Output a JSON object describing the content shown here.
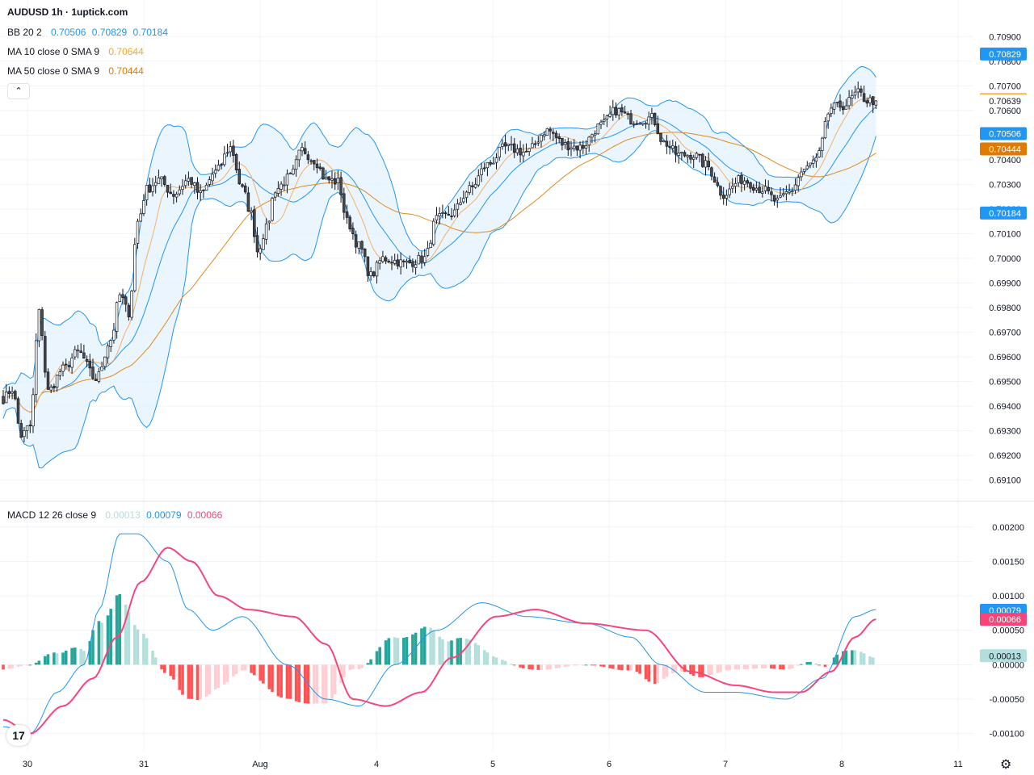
{
  "header": {
    "title": "AUDUSD 1h · 1uptick.com"
  },
  "legend": {
    "bb": {
      "label": "BB 20 2",
      "basis": "0.70506",
      "upper": "0.70829",
      "lower": "0.70184"
    },
    "ma10": {
      "label": "MA 10 close 0 SMA 9",
      "value": "0.70644"
    },
    "ma50": {
      "label": "MA 50 close 0 SMA 9",
      "value": "0.70444"
    },
    "macd": {
      "label": "MACD 12 26 close 9",
      "hist": "0.00013",
      "macd": "0.00079",
      "signal": "0.00066"
    }
  },
  "collapse_icon": "chevron-up-icon",
  "logo_text": "17",
  "settings_icon": "gear-icon",
  "colors": {
    "up": "#ffffff",
    "down": "#4a4a4a",
    "wick": "#131722",
    "bb_line": "#2196f3",
    "bb_fill": "#e3f2fd",
    "ma10": "#f5b064",
    "ma50": "#e08a1e",
    "macd": "#2196f3",
    "signal": "#f7457a",
    "hist_pos_strong": "#26a69a",
    "hist_pos_weak": "#b2dfdb",
    "hist_neg_strong": "#ff5252",
    "hist_neg_weak": "#ffcdd2"
  },
  "chart_data": {
    "type": "candlestick",
    "price_axis": {
      "range": [
        0.6905,
        0.7095
      ],
      "ticks": [
        "0.70900",
        "0.70800",
        "0.70700",
        "0.70600",
        "0.70500",
        "0.70400",
        "0.70300",
        "0.70200",
        "0.70100",
        "0.70000",
        "0.69900",
        "0.69800",
        "0.69700",
        "0.69600",
        "0.69500",
        "0.69400",
        "0.69300",
        "0.69200",
        "0.69100"
      ]
    },
    "price_badges": [
      {
        "value": "0.70829",
        "color": "#2196f3"
      },
      {
        "value": "0.70644",
        "color": "#f5a623"
      },
      {
        "value": "0.70639",
        "color": "#ffffff"
      },
      {
        "value": "0.70506",
        "color": "#2196f3"
      },
      {
        "value": "0.70444",
        "color": "#e07b00"
      },
      {
        "value": "0.70184",
        "color": "#2196f3"
      }
    ],
    "macd_axis": {
      "range": [
        -0.00125,
        0.00215
      ],
      "ticks": [
        "0.00200",
        "0.00150",
        "0.00100",
        "0.00050",
        "0.00000",
        "-0.00050",
        "-0.00100"
      ]
    },
    "macd_badges": [
      {
        "value": "0.00079",
        "color": "#2196f3"
      },
      {
        "value": "0.00066",
        "color": "#f7457a"
      },
      {
        "value": "0.00013",
        "color": "#b2dfdb"
      }
    ],
    "time_labels": [
      "30",
      "31",
      "Aug",
      "4",
      "5",
      "6",
      "7",
      "8",
      "11"
    ],
    "macd_anchors": [
      [
        0,
        -0.0009
      ],
      [
        9,
        -0.001
      ],
      [
        18,
        -0.0004
      ],
      [
        27,
        0.0
      ],
      [
        32,
        0.0008
      ],
      [
        39,
        0.0019
      ],
      [
        45,
        0.0019
      ],
      [
        55,
        0.0015
      ],
      [
        62,
        0.0008
      ],
      [
        70,
        0.0005
      ],
      [
        80,
        0.0007
      ],
      [
        95,
        0.0
      ],
      [
        108,
        -0.0005
      ],
      [
        119,
        -0.0006
      ],
      [
        131,
        0.0
      ],
      [
        145,
        0.0005
      ],
      [
        160,
        0.0009
      ],
      [
        175,
        0.0007
      ],
      [
        195,
        0.0006
      ],
      [
        210,
        0.0004
      ],
      [
        220,
        0.0
      ],
      [
        235,
        -0.0004
      ],
      [
        245,
        -0.0004
      ],
      [
        262,
        -0.0005
      ],
      [
        274,
        -0.0002
      ],
      [
        285,
        0.0007
      ],
      [
        292,
        0.0008
      ]
    ],
    "signal_anchors": [
      [
        0,
        -0.0008
      ],
      [
        9,
        -0.001
      ],
      [
        20,
        -0.0006
      ],
      [
        30,
        -0.0002
      ],
      [
        38,
        0.0004
      ],
      [
        46,
        0.0012
      ],
      [
        55,
        0.0017
      ],
      [
        63,
        0.0015
      ],
      [
        72,
        0.001
      ],
      [
        82,
        0.0008
      ],
      [
        97,
        0.0007
      ],
      [
        108,
        0.0003
      ],
      [
        117,
        -0.0005
      ],
      [
        128,
        -0.0006
      ],
      [
        140,
        -0.0004
      ],
      [
        150,
        0.0001
      ],
      [
        165,
        0.0007
      ],
      [
        178,
        0.0008
      ],
      [
        195,
        0.0006
      ],
      [
        215,
        0.0005
      ],
      [
        230,
        -0.0001
      ],
      [
        245,
        -0.0003
      ],
      [
        258,
        -0.0004
      ],
      [
        267,
        -0.0004
      ],
      [
        277,
        -0.0001
      ],
      [
        285,
        0.0004
      ],
      [
        292,
        0.00066
      ]
    ],
    "candle_anchors": [
      [
        0,
        0.6943
      ],
      [
        3,
        0.6947
      ],
      [
        6,
        0.6928
      ],
      [
        9,
        0.6932
      ],
      [
        12,
        0.6978
      ],
      [
        15,
        0.6946
      ],
      [
        20,
        0.6955
      ],
      [
        25,
        0.6962
      ],
      [
        31,
        0.6951
      ],
      [
        36,
        0.6967
      ],
      [
        39,
        0.6985
      ],
      [
        42,
        0.6978
      ],
      [
        45,
        0.7015
      ],
      [
        48,
        0.7028
      ],
      [
        52,
        0.7032
      ],
      [
        57,
        0.7026
      ],
      [
        62,
        0.7032
      ],
      [
        66,
        0.7026
      ],
      [
        71,
        0.7035
      ],
      [
        76,
        0.7045
      ],
      [
        80,
        0.7028
      ],
      [
        83,
        0.7018
      ],
      [
        85,
        0.7003
      ],
      [
        88,
        0.7012
      ],
      [
        91,
        0.7028
      ],
      [
        96,
        0.7033
      ],
      [
        100,
        0.7044
      ],
      [
        104,
        0.704
      ],
      [
        108,
        0.7032
      ],
      [
        112,
        0.7031
      ],
      [
        115,
        0.7015
      ],
      [
        119,
        0.7005
      ],
      [
        123,
        0.6993
      ],
      [
        127,
        0.7
      ],
      [
        135,
        0.6998
      ],
      [
        141,
        0.7
      ],
      [
        145,
        0.7016
      ],
      [
        150,
        0.7018
      ],
      [
        156,
        0.7028
      ],
      [
        162,
        0.7038
      ],
      [
        168,
        0.7045
      ],
      [
        175,
        0.7043
      ],
      [
        182,
        0.7052
      ],
      [
        188,
        0.7046
      ],
      [
        193,
        0.7045
      ],
      [
        200,
        0.7054
      ],
      [
        205,
        0.706
      ],
      [
        211,
        0.7056
      ],
      [
        217,
        0.7057
      ],
      [
        221,
        0.7047
      ],
      [
        226,
        0.7042
      ],
      [
        231,
        0.7042
      ],
      [
        235,
        0.7038
      ],
      [
        241,
        0.7026
      ],
      [
        247,
        0.7032
      ],
      [
        254,
        0.7028
      ],
      [
        259,
        0.7023
      ],
      [
        263,
        0.7027
      ],
      [
        268,
        0.7036
      ],
      [
        272,
        0.704
      ],
      [
        277,
        0.7061
      ],
      [
        281,
        0.7062
      ],
      [
        286,
        0.7067
      ],
      [
        289,
        0.7064
      ],
      [
        292,
        0.70639
      ]
    ]
  }
}
